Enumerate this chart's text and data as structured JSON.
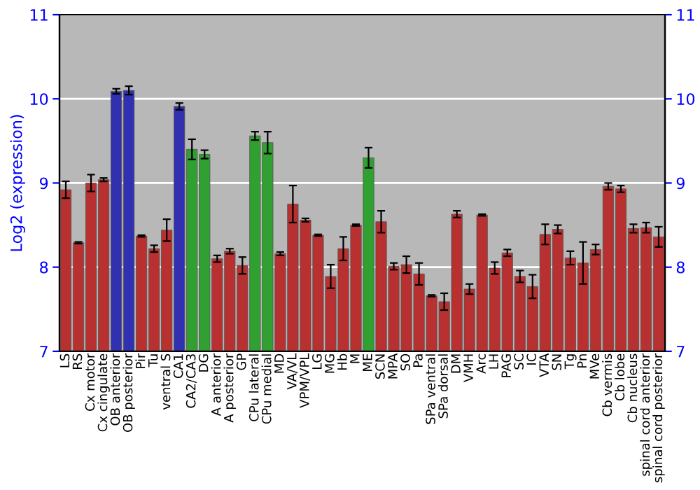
{
  "chart_data": {
    "type": "bar",
    "ylabel": "Log2 (expression)",
    "categories": [
      "LS",
      "RS",
      "Cx motor",
      "Cx cingulate",
      "OB anterior",
      "OB posterior",
      "Pir",
      "Tu",
      "ventral S",
      "CA1",
      "CA2/CA3",
      "DG",
      "A anterior",
      "A posterior",
      "GP",
      "CPu lateral",
      "CPu medial",
      "MD",
      "VA/VL",
      "VPM/VPL",
      "LG",
      "MG",
      "Hb",
      "M",
      "ME",
      "SCN",
      "MPA",
      "SO",
      "Pa",
      "SPa ventral",
      "SPa dorsal",
      "DM",
      "VMH",
      "Arc",
      "LH",
      "PAG",
      "SC",
      "IC",
      "VTA",
      "SN",
      "Tg",
      "Pn",
      "MVe",
      "Cb vermis",
      "Cb lobe",
      "Cb nucleus",
      "spinal cord anterior",
      "spinal cord posterior"
    ],
    "values": [
      8.92,
      8.29,
      9.0,
      9.04,
      10.09,
      10.1,
      8.37,
      8.22,
      8.44,
      9.91,
      9.4,
      9.34,
      8.1,
      8.19,
      8.02,
      9.56,
      9.48,
      8.16,
      8.75,
      8.56,
      8.38,
      7.89,
      8.22,
      8.5,
      9.3,
      8.54,
      8.01,
      8.03,
      7.92,
      7.66,
      7.59,
      8.63,
      7.74,
      8.62,
      7.99,
      8.17,
      7.89,
      7.77,
      8.39,
      8.45,
      8.11,
      8.05,
      8.21,
      8.96,
      8.93,
      8.46,
      8.47,
      8.36
    ],
    "errors": [
      0.1,
      0.01,
      0.1,
      0.02,
      0.03,
      0.05,
      0.01,
      0.04,
      0.13,
      0.04,
      0.12,
      0.05,
      0.04,
      0.03,
      0.1,
      0.05,
      0.13,
      0.02,
      0.22,
      0.02,
      0.01,
      0.14,
      0.14,
      0.01,
      0.12,
      0.13,
      0.04,
      0.1,
      0.13,
      0.01,
      0.1,
      0.04,
      0.06,
      0.01,
      0.07,
      0.04,
      0.07,
      0.14,
      0.12,
      0.05,
      0.08,
      0.25,
      0.06,
      0.04,
      0.04,
      0.05,
      0.06,
      0.12
    ],
    "colors": [
      "#b83030",
      "#b83030",
      "#b83030",
      "#b83030",
      "#3030b0",
      "#3030b0",
      "#b83030",
      "#b83030",
      "#b83030",
      "#3030b0",
      "#30a030",
      "#30a030",
      "#b83030",
      "#b83030",
      "#b83030",
      "#30a030",
      "#30a030",
      "#b83030",
      "#b83030",
      "#b83030",
      "#b83030",
      "#b83030",
      "#b83030",
      "#b83030",
      "#30a030",
      "#b83030",
      "#b83030",
      "#b83030",
      "#b83030",
      "#b83030",
      "#b83030",
      "#b83030",
      "#b83030",
      "#b83030",
      "#b83030",
      "#b83030",
      "#b83030",
      "#b83030",
      "#b83030",
      "#b83030",
      "#b83030",
      "#b83030",
      "#b83030",
      "#b83030",
      "#b83030",
      "#b83030",
      "#b83030",
      "#b83030"
    ],
    "ylim": [
      7,
      11
    ],
    "yticks": [
      7,
      8,
      9,
      10,
      11
    ],
    "y2lim": [
      7,
      11
    ],
    "y2ticks": [
      7,
      8,
      9,
      10,
      11
    ],
    "grid": "y",
    "legend": false
  }
}
